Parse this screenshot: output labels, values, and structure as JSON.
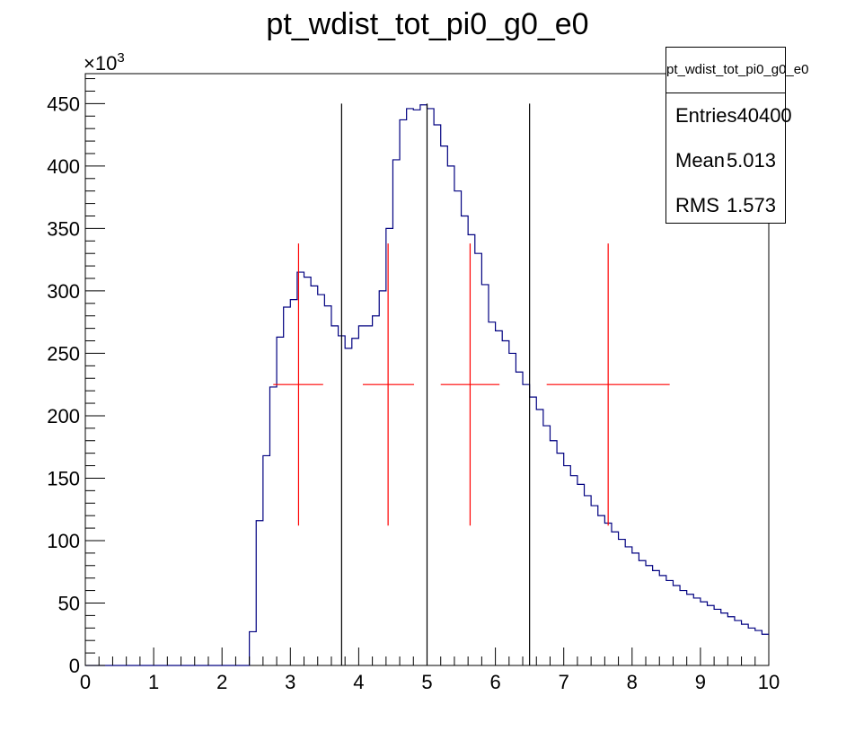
{
  "chart_data": {
    "type": "bar",
    "title": "pt_wdist_tot_pi0_g0_e0",
    "exponent_label": "×10",
    "exponent_sup": "3",
    "xlim": [
      0,
      10
    ],
    "ylim": [
      0,
      474
    ],
    "x_ticks": [
      "0",
      "1",
      "2",
      "3",
      "4",
      "5",
      "6",
      "7",
      "8",
      "9",
      "10"
    ],
    "y_ticks": [
      "0",
      "50",
      "100",
      "150",
      "200",
      "250",
      "300",
      "350",
      "400",
      "450"
    ],
    "histogram": {
      "bin_edges_start": 0,
      "bin_width": 0.1,
      "values": [
        0,
        0,
        0,
        0,
        0,
        0,
        0,
        0,
        0,
        0,
        0,
        0,
        0,
        0,
        0,
        0,
        0,
        0,
        0,
        0,
        0,
        0,
        0,
        0,
        27,
        116,
        168,
        223,
        263,
        287,
        293,
        315,
        311,
        304,
        297,
        288,
        272,
        264,
        254,
        262,
        272,
        272,
        280,
        300,
        350,
        405,
        437,
        446,
        445,
        449,
        446,
        433,
        416,
        400,
        380,
        360,
        345,
        330,
        305,
        275,
        268,
        260,
        250,
        235,
        225,
        215,
        205,
        192,
        180,
        170,
        160,
        152,
        145,
        136,
        128,
        120,
        114,
        107,
        101,
        95,
        90,
        84,
        80,
        76,
        72,
        68,
        64,
        60,
        57,
        54,
        51,
        48,
        45,
        42,
        39,
        36,
        33,
        30,
        28,
        25
      ]
    },
    "vertical_lines": [
      {
        "x": 3.75,
        "y_top": 450
      },
      {
        "x": 5.0,
        "y_top": 450
      },
      {
        "x": 6.5,
        "y_top": 450
      }
    ],
    "red_markers": [
      {
        "x": 3.12,
        "y": 225,
        "x_err_lo": 0.37,
        "x_err_hi": 0.36,
        "y_err": 113
      },
      {
        "x": 4.43,
        "y": 225,
        "x_err_lo": 0.37,
        "x_err_hi": 0.38,
        "y_err": 113
      },
      {
        "x": 5.63,
        "y": 225,
        "x_err_lo": 0.43,
        "x_err_hi": 0.43,
        "y_err": 113
      },
      {
        "x": 7.65,
        "y": 225,
        "x_err_lo": 0.9,
        "x_err_hi": 0.9,
        "y_err": 113
      }
    ],
    "colors": {
      "histogram": "#000080",
      "markers": "#ff0000",
      "lines": "#000000"
    },
    "stats": {
      "title": "pt_wdist_tot_pi0_g0_e0",
      "entries_label": "Entries",
      "entries": "40400",
      "mean_label": "Mean",
      "mean": "5.013",
      "rms_label": "RMS",
      "rms": "1.573"
    }
  }
}
